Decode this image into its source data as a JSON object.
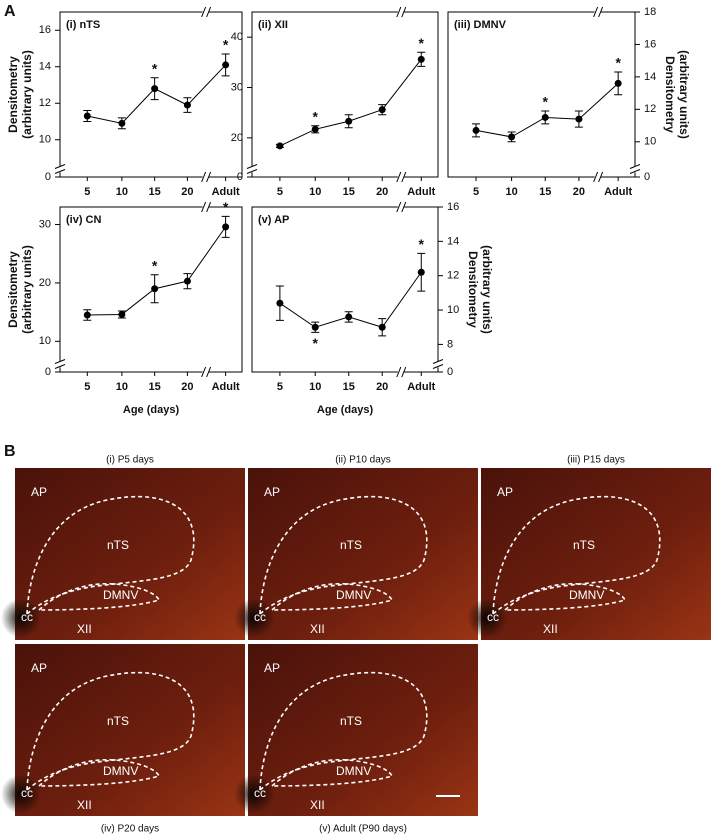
{
  "chart_data": [
    {
      "type": "line",
      "title": "(i) nTS",
      "categories": [
        "5",
        "10",
        "15",
        "20",
        "Adult"
      ],
      "values": [
        11.3,
        10.9,
        12.8,
        11.9,
        14.1
      ],
      "errors": [
        0.3,
        0.3,
        0.6,
        0.4,
        0.6
      ],
      "significance": [
        null,
        null,
        "*",
        null,
        "*"
      ],
      "ylim": [
        9,
        17
      ],
      "yticks": [
        0,
        10,
        12,
        14,
        16
      ],
      "y_axis": "left",
      "ylabel": [
        "Densitometry",
        "(arbitrary units)"
      ],
      "axis_break": true,
      "color": "#000000"
    },
    {
      "type": "line",
      "title": "(ii) XII",
      "categories": [
        "5",
        "10",
        "15",
        "20",
        "Adult"
      ],
      "values": [
        18.4,
        21.7,
        23.3,
        25.6,
        35.6
      ],
      "errors": [
        0.3,
        0.7,
        1.3,
        1.0,
        1.4
      ],
      "significance": [
        null,
        "*",
        null,
        null,
        "*"
      ],
      "ylim": [
        16,
        45
      ],
      "yticks": [
        0,
        20,
        30,
        40
      ],
      "y_axis": "left",
      "axis_break": true,
      "color": "#000000"
    },
    {
      "type": "line",
      "title": "(iii) DMNV",
      "categories": [
        "5",
        "10",
        "15",
        "20",
        "Adult"
      ],
      "values": [
        10.7,
        10.3,
        11.5,
        11.4,
        13.6
      ],
      "errors": [
        0.4,
        0.3,
        0.4,
        0.5,
        0.7
      ],
      "significance": [
        null,
        null,
        "*",
        null,
        "*"
      ],
      "ylim": [
        9,
        18
      ],
      "yticks": [
        0,
        10,
        12,
        14,
        16,
        18
      ],
      "y_axis": "right",
      "ylabel": [
        "Densitometry",
        "(arbitrary units)"
      ],
      "axis_break": true,
      "color": "#000000"
    },
    {
      "type": "line",
      "title": "(iv) CN",
      "categories": [
        "5",
        "10",
        "15",
        "20",
        "Adult"
      ],
      "values": [
        14.5,
        14.6,
        19.0,
        20.3,
        29.6
      ],
      "errors": [
        0.9,
        0.6,
        2.4,
        1.3,
        1.8
      ],
      "significance": [
        null,
        null,
        "*",
        null,
        "*"
      ],
      "ylim": [
        8,
        33
      ],
      "yticks": [
        0,
        10,
        20,
        30
      ],
      "y_axis": "left",
      "ylabel": [
        "Densitometry",
        "(arbitrary units)"
      ],
      "xlabel": "Age (days)",
      "axis_break": true,
      "color": "#000000"
    },
    {
      "type": "line",
      "title": "(v) AP",
      "categories": [
        "5",
        "10",
        "15",
        "20",
        "Adult"
      ],
      "values": [
        10.4,
        9.0,
        9.6,
        9.0,
        12.2
      ],
      "errors": [
        1.0,
        0.3,
        0.3,
        0.5,
        1.1
      ],
      "significance": [
        null,
        {
          "label": "*",
          "position": "below"
        },
        null,
        null,
        "*"
      ],
      "ylim": [
        7.5,
        16
      ],
      "yticks": [
        0,
        8,
        10,
        12,
        14,
        16
      ],
      "y_axis": "right",
      "ylabel": [
        "Densitometry",
        "(arbitrary units)"
      ],
      "xlabel": "Age (days)",
      "axis_break": true,
      "color": "#000000"
    }
  ],
  "panel_a": {
    "label": "A"
  },
  "panel_b": {
    "label": "B",
    "images": [
      {
        "title": "(i) P5 days",
        "regions": [
          "AP",
          "nTS",
          "DMNV",
          "cc",
          "XII"
        ]
      },
      {
        "title": "(ii) P10 days",
        "regions": [
          "AP",
          "nTS",
          "DMNV",
          "cc",
          "XII"
        ]
      },
      {
        "title": "(iii) P15 days",
        "regions": [
          "AP",
          "nTS",
          "DMNV",
          "cc",
          "XII"
        ]
      },
      {
        "title": "(iv) P20 days",
        "regions": [
          "AP",
          "nTS",
          "DMNV",
          "cc",
          "XII"
        ]
      },
      {
        "title": "(v) Adult (P90 days)",
        "regions": [
          "AP",
          "nTS",
          "DMNV",
          "cc",
          "XII"
        ]
      }
    ]
  }
}
